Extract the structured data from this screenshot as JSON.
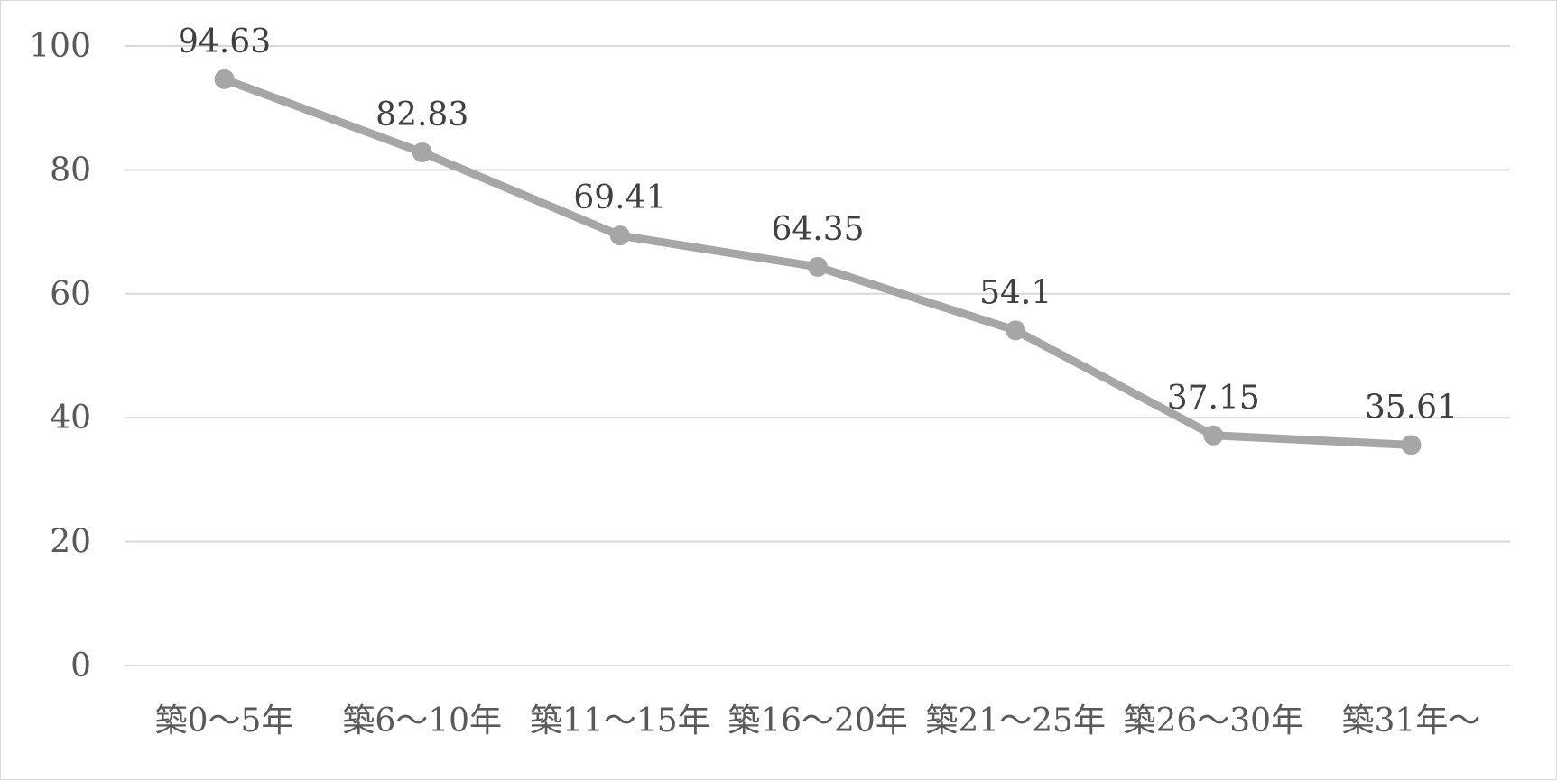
{
  "chart_data": {
    "type": "line",
    "title": "",
    "xlabel": "",
    "ylabel": "",
    "categories": [
      "築0～5年",
      "築6～10年",
      "築11～15年",
      "築16～20年",
      "築21～25年",
      "築26～30年",
      "築31年～"
    ],
    "series": [
      {
        "values": [
          94.63,
          82.83,
          69.41,
          64.35,
          54.1,
          37.15,
          35.61
        ],
        "data_labels": [
          "94.63",
          "82.83",
          "69.41",
          "64.35",
          "54.1",
          "37.15",
          "35.61"
        ],
        "color": "#a6a6a6"
      }
    ],
    "ylim": [
      0,
      100
    ],
    "y_ticks": [
      0,
      20,
      40,
      60,
      80,
      100
    ],
    "y_tick_labels": [
      "0",
      "20",
      "40",
      "60",
      "80",
      "100"
    ],
    "grid": true,
    "legend": "none",
    "colors": {
      "gridline": "#d9d9d9",
      "tick_text": "#595959",
      "label_text": "#404040",
      "line": "#a6a6a6",
      "border": "#d9d9d9"
    }
  }
}
